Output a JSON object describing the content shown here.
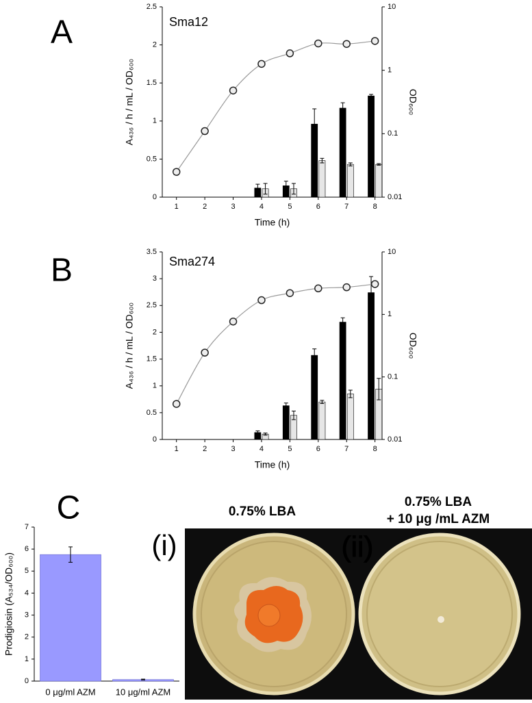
{
  "chart_data": [
    {
      "type": "combo",
      "panel": "A",
      "title": "Sma12",
      "xlabel": "Time (h)",
      "ylabel": "A₄₃₆ / h / mL / OD₆₀₀",
      "y2label": "OD₆₀₀",
      "x": [
        1,
        2,
        3,
        4,
        5,
        6,
        7,
        8
      ],
      "xlim": [
        0.5,
        8.25
      ],
      "xticks": [
        1,
        2,
        3,
        4,
        5,
        6,
        7,
        8
      ],
      "ylim": [
        0,
        2.5
      ],
      "yticks": [
        0,
        0.5,
        1,
        1.5,
        2,
        2.5
      ],
      "y2lim": [
        0.01,
        10
      ],
      "y2ticks": [
        0.01,
        0.1,
        1,
        10
      ],
      "y2scale": "log",
      "series": [
        {
          "kind": "bar",
          "color": "#000000",
          "values": [
            null,
            null,
            null,
            0.12,
            0.15,
            0.96,
            1.17,
            1.33
          ],
          "errors": [
            null,
            null,
            null,
            0.05,
            0.06,
            0.2,
            0.07,
            0.02
          ]
        },
        {
          "kind": "bar",
          "color": "#e6e6e6",
          "values": [
            null,
            null,
            null,
            0.11,
            0.11,
            0.48,
            0.43,
            0.43
          ],
          "errors": [
            null,
            null,
            null,
            0.07,
            0.07,
            0.03,
            0.02,
            0.01
          ]
        },
        {
          "kind": "line",
          "axis": "y2",
          "color": "#999999",
          "values": [
            0.025,
            0.11,
            0.48,
            1.26,
            1.85,
            2.65,
            2.6,
            2.9
          ]
        }
      ]
    },
    {
      "type": "combo",
      "panel": "B",
      "title": "Sma274",
      "xlabel": "Time (h)",
      "ylabel": "A₄₃₆ / h / mL / OD₆₀₀",
      "y2label": "OD₆₀₀",
      "x": [
        1,
        2,
        3,
        4,
        5,
        6,
        7,
        8
      ],
      "xlim": [
        0.5,
        8.25
      ],
      "xticks": [
        1,
        2,
        3,
        4,
        5,
        6,
        7,
        8
      ],
      "ylim": [
        0,
        3.5
      ],
      "yticks": [
        0,
        0.5,
        1,
        1.5,
        2,
        2.5,
        3,
        3.5
      ],
      "y2lim": [
        0.01,
        10
      ],
      "y2ticks": [
        0.01,
        0.1,
        1,
        10
      ],
      "y2scale": "log",
      "series": [
        {
          "kind": "bar",
          "color": "#000000",
          "values": [
            null,
            null,
            null,
            0.13,
            0.63,
            1.57,
            2.19,
            2.74
          ],
          "errors": [
            null,
            null,
            null,
            0.03,
            0.05,
            0.12,
            0.08,
            0.3
          ]
        },
        {
          "kind": "bar",
          "color": "#e6e6e6",
          "values": [
            null,
            null,
            null,
            0.1,
            0.45,
            0.7,
            0.85,
            0.94
          ],
          "errors": [
            null,
            null,
            null,
            0.02,
            0.08,
            0.03,
            0.07,
            0.2
          ]
        },
        {
          "kind": "line",
          "axis": "y2",
          "color": "#999999",
          "values": [
            0.037,
            0.245,
            0.77,
            1.69,
            2.19,
            2.61,
            2.72,
            3.06
          ]
        }
      ]
    },
    {
      "type": "bar",
      "panel": "C",
      "annotation": "(i)",
      "ylabel": "Prodigiosin (A₅₃₄/OD₆₀₀)",
      "categories": [
        "0 μg/ml AZM",
        "10 μg/ml AZM"
      ],
      "values": [
        5.75,
        0.07
      ],
      "errors": [
        0.35,
        0.02
      ],
      "color": "#9999ff",
      "ylim": [
        0,
        7
      ],
      "yticks": [
        0,
        1,
        2,
        3,
        4,
        5,
        6,
        7
      ]
    }
  ],
  "photo": {
    "label": "(ii)",
    "captions": [
      "0.75% LBA",
      "0.75% LBA",
      "+ 10 μg /mL AZM"
    ]
  }
}
